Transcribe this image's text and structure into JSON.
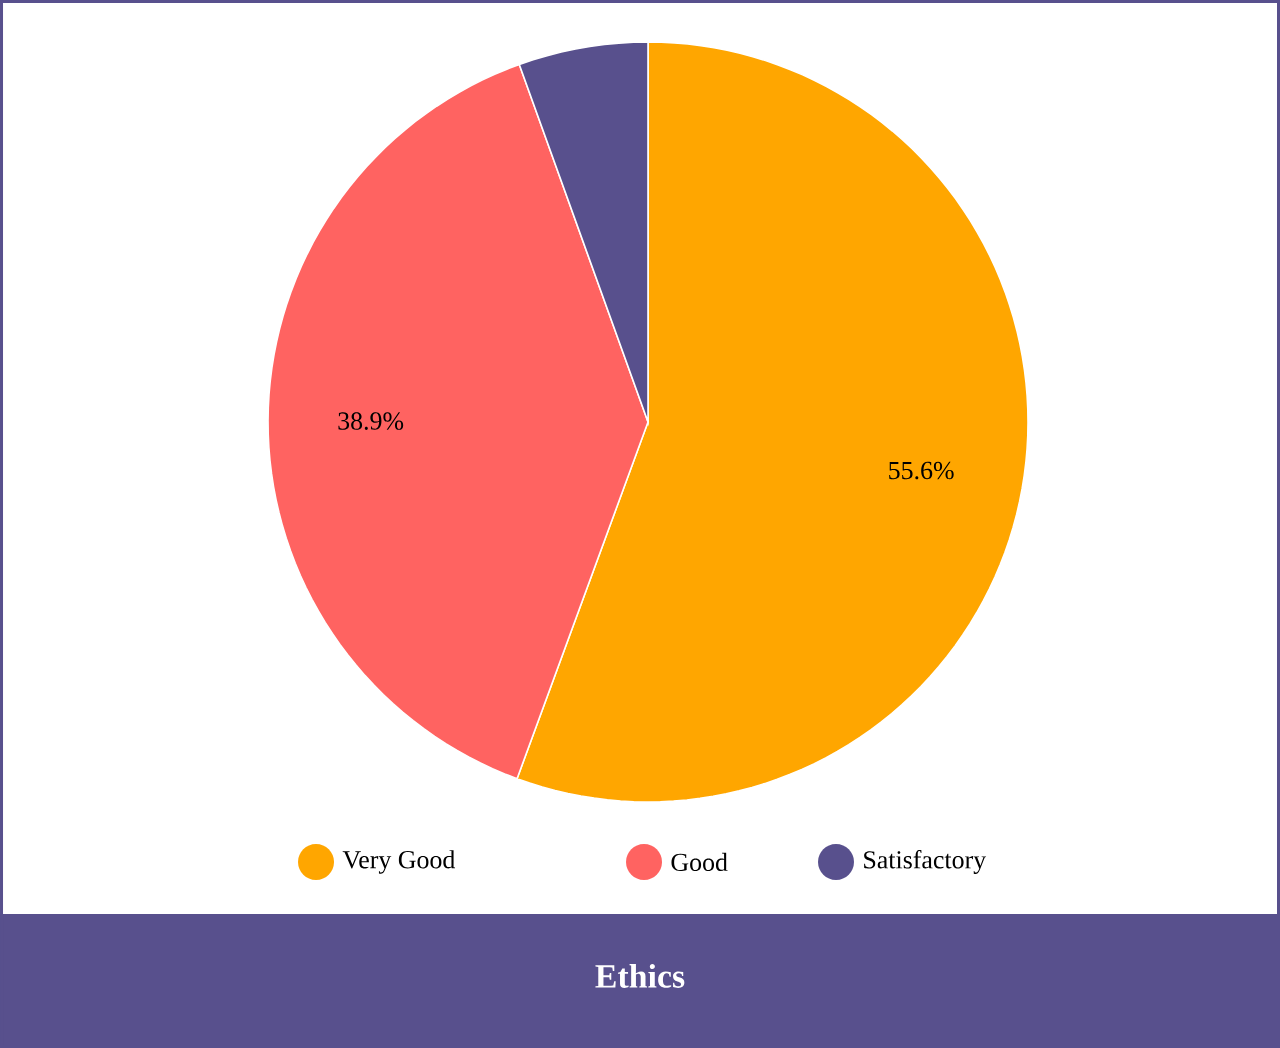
{
  "chart_data": {
    "type": "pie",
    "title": "Ethics",
    "categories": [
      "Very Good",
      "Good",
      "Satisfactory"
    ],
    "values": [
      55.6,
      38.9,
      5.5
    ],
    "colors": [
      "#ffa600",
      "#ff6361",
      "#58508d"
    ],
    "value_labels": [
      "55.6%",
      "38.9%",
      null
    ],
    "legend": "bottom"
  }
}
